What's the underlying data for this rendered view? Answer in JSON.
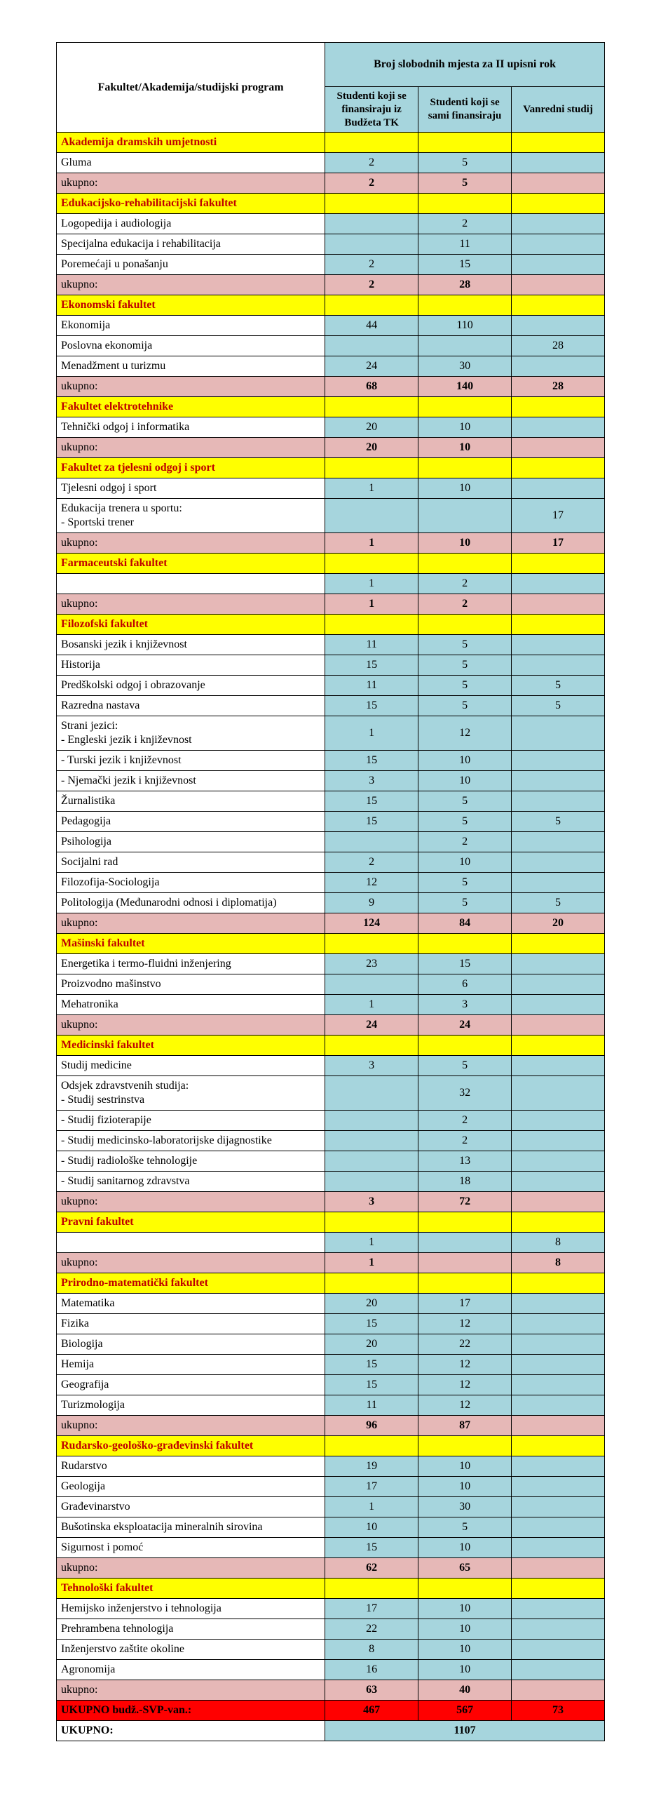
{
  "header": {
    "left": "Fakultet/Akademija/studijski program",
    "top": "Broj slobodnih mjesta za II upisni rok",
    "sub1": "Studenti koji se finansiraju iz Budžeta TK",
    "sub2": "Studenti koji se sami finansiraju",
    "sub3": "Vanredni studij"
  },
  "rows": [
    {
      "type": "faculty",
      "label": "Akademija dramskih umjetnosti"
    },
    {
      "type": "program",
      "label": "Gluma",
      "v": [
        "2",
        "5",
        ""
      ]
    },
    {
      "type": "subtotal",
      "label": "ukupno:",
      "v": [
        "2",
        "5",
        ""
      ]
    },
    {
      "type": "faculty",
      "label": "Edukacijsko-rehabilitacijski fakultet"
    },
    {
      "type": "program",
      "label": "Logopedija i audiologija",
      "v": [
        "",
        "2",
        ""
      ]
    },
    {
      "type": "program",
      "label": "Specijalna edukacija i rehabilitacija",
      "v": [
        "",
        "11",
        ""
      ]
    },
    {
      "type": "program",
      "label": "Poremećaji u ponašanju",
      "v": [
        "2",
        "15",
        ""
      ]
    },
    {
      "type": "subtotal",
      "label": "ukupno:",
      "v": [
        "2",
        "28",
        ""
      ]
    },
    {
      "type": "faculty",
      "label": "Ekonomski fakultet"
    },
    {
      "type": "program",
      "label": "Ekonomija",
      "v": [
        "44",
        "110",
        ""
      ]
    },
    {
      "type": "program",
      "label": "Poslovna ekonomija",
      "v": [
        "",
        "",
        "28"
      ]
    },
    {
      "type": "program",
      "label": "Menadžment u turizmu",
      "v": [
        "24",
        "30",
        ""
      ]
    },
    {
      "type": "subtotal",
      "label": "ukupno:",
      "v": [
        "68",
        "140",
        "28"
      ]
    },
    {
      "type": "faculty",
      "label": "Fakultet  elektrotehnike"
    },
    {
      "type": "program",
      "label": "Tehnički odgoj i informatika",
      "v": [
        "20",
        "10",
        ""
      ]
    },
    {
      "type": "subtotal",
      "label": "ukupno:",
      "v": [
        "20",
        "10",
        ""
      ]
    },
    {
      "type": "faculty",
      "label": "Fakultet  za tjelesni odgoj i sport"
    },
    {
      "type": "program",
      "label": "Tjelesni odgoj i sport",
      "v": [
        "1",
        "10",
        ""
      ]
    },
    {
      "type": "program",
      "label": "Edukacija trenera u sportu:\n - Sportski trener",
      "v": [
        "",
        "",
        "17"
      ]
    },
    {
      "type": "subtotal",
      "label": "ukupno:",
      "v": [
        "1",
        "10",
        "17"
      ]
    },
    {
      "type": "faculty",
      "label": "Farmaceutski fakultet"
    },
    {
      "type": "program",
      "label": "",
      "v": [
        "1",
        "2",
        ""
      ]
    },
    {
      "type": "subtotal",
      "label": "ukupno:",
      "v": [
        "1",
        "2",
        ""
      ]
    },
    {
      "type": "faculty",
      "label": "Filozofski fakultet"
    },
    {
      "type": "program",
      "label": "Bosanski jezik i književnost",
      "v": [
        "11",
        "5",
        ""
      ]
    },
    {
      "type": "program",
      "label": "Historija",
      "v": [
        "15",
        "5",
        ""
      ]
    },
    {
      "type": "program",
      "label": "Predškolski odgoj i obrazovanje",
      "v": [
        "11",
        "5",
        "5"
      ]
    },
    {
      "type": "program",
      "label": "Razredna nastava",
      "v": [
        "15",
        "5",
        "5"
      ]
    },
    {
      "type": "program",
      "label": "Strani jezici:\n - Engleski jezik i književnost",
      "v": [
        "1",
        "12",
        ""
      ]
    },
    {
      "type": "program",
      "label": " - Turski jezik i književnost",
      "v": [
        "15",
        "10",
        ""
      ]
    },
    {
      "type": "program",
      "label": " - Njemački jezik i književnost",
      "v": [
        "3",
        "10",
        ""
      ]
    },
    {
      "type": "program",
      "label": "Žurnalistika",
      "v": [
        "15",
        "5",
        ""
      ]
    },
    {
      "type": "program",
      "label": "Pedagogija",
      "v": [
        "15",
        "5",
        "5"
      ]
    },
    {
      "type": "program",
      "label": "Psihologija",
      "v": [
        "",
        "2",
        ""
      ]
    },
    {
      "type": "program",
      "label": "Socijalni rad",
      "v": [
        "2",
        "10",
        ""
      ]
    },
    {
      "type": "program",
      "label": "Filozofija-Sociologija",
      "v": [
        "12",
        "5",
        ""
      ]
    },
    {
      "type": "program",
      "label": "Politologija (Međunarodni odnosi i diplomatija)",
      "v": [
        "9",
        "5",
        "5"
      ]
    },
    {
      "type": "subtotal",
      "label": "ukupno:",
      "v": [
        "124",
        "84",
        "20"
      ]
    },
    {
      "type": "faculty",
      "label": "Mašinski fakultet"
    },
    {
      "type": "program",
      "label": "Energetika i termo-fluidni inženjering",
      "v": [
        "23",
        "15",
        ""
      ]
    },
    {
      "type": "program",
      "label": "Proizvodno mašinstvo",
      "v": [
        "",
        "6",
        ""
      ]
    },
    {
      "type": "program",
      "label": "Mehatronika",
      "v": [
        "1",
        "3",
        ""
      ]
    },
    {
      "type": "subtotal",
      "label": "ukupno:",
      "v": [
        "24",
        "24",
        ""
      ]
    },
    {
      "type": "faculty",
      "label": "Medicinski fakultet"
    },
    {
      "type": "program",
      "label": "Studij medicine",
      "v": [
        "3",
        "5",
        ""
      ]
    },
    {
      "type": "program",
      "label": "Odsjek zdravstvenih studija:\n - Studij sestrinstva",
      "v": [
        "",
        "32",
        ""
      ]
    },
    {
      "type": "program",
      "label": " - Studij fizioterapije",
      "v": [
        "",
        "2",
        ""
      ]
    },
    {
      "type": "program",
      "label": " - Studij medicinsko-laboratorijske dijagnostike",
      "v": [
        "",
        "2",
        ""
      ]
    },
    {
      "type": "program",
      "label": " - Studij radiološke tehnologije",
      "v": [
        "",
        "13",
        ""
      ]
    },
    {
      "type": "program",
      "label": " - Studij sanitarnog zdravstva",
      "v": [
        "",
        "18",
        ""
      ]
    },
    {
      "type": "subtotal",
      "label": "ukupno:",
      "v": [
        "3",
        "72",
        ""
      ]
    },
    {
      "type": "faculty",
      "label": "Pravni fakultet"
    },
    {
      "type": "program",
      "label": "",
      "v": [
        "1",
        "",
        "8"
      ]
    },
    {
      "type": "subtotal",
      "label": "ukupno:",
      "v": [
        "1",
        "",
        "8"
      ]
    },
    {
      "type": "faculty",
      "label": "Prirodno-matematički fakultet"
    },
    {
      "type": "program",
      "label": "Matematika",
      "v": [
        "20",
        "17",
        ""
      ]
    },
    {
      "type": "program",
      "label": "Fizika",
      "v": [
        "15",
        "12",
        ""
      ]
    },
    {
      "type": "program",
      "label": "Biologija",
      "v": [
        "20",
        "22",
        ""
      ]
    },
    {
      "type": "program",
      "label": "Hemija",
      "v": [
        "15",
        "12",
        ""
      ]
    },
    {
      "type": "program",
      "label": "Geografija",
      "v": [
        "15",
        "12",
        ""
      ]
    },
    {
      "type": "program",
      "label": "Turizmologija",
      "v": [
        "11",
        "12",
        ""
      ]
    },
    {
      "type": "subtotal",
      "label": "ukupno:",
      "v": [
        "96",
        "87",
        ""
      ]
    },
    {
      "type": "faculty",
      "label": "Rudarsko-geološko-građevinski fakultet"
    },
    {
      "type": "program",
      "label": "Rudarstvo",
      "v": [
        "19",
        "10",
        ""
      ]
    },
    {
      "type": "program",
      "label": "Geologija",
      "v": [
        "17",
        "10",
        ""
      ]
    },
    {
      "type": "program",
      "label": "Građevinarstvo",
      "v": [
        "1",
        "30",
        ""
      ]
    },
    {
      "type": "program",
      "label": "Bušotinska eksploatacija mineralnih sirovina",
      "v": [
        "10",
        "5",
        ""
      ]
    },
    {
      "type": "program",
      "label": "Sigurnost i pomoć",
      "v": [
        "15",
        "10",
        ""
      ]
    },
    {
      "type": "subtotal",
      "label": "ukupno:",
      "v": [
        "62",
        "65",
        ""
      ]
    },
    {
      "type": "faculty",
      "label": "Tehnološki fakultet"
    },
    {
      "type": "program",
      "label": "Hemijsko inženjerstvo i tehnologija",
      "v": [
        "17",
        "10",
        ""
      ]
    },
    {
      "type": "program",
      "label": "Prehrambena tehnologija",
      "v": [
        "22",
        "10",
        ""
      ]
    },
    {
      "type": "program",
      "label": "Inženjerstvo zaštite okoline",
      "v": [
        "8",
        "10",
        ""
      ]
    },
    {
      "type": "program",
      "label": "Agronomija",
      "v": [
        "16",
        "10",
        ""
      ]
    },
    {
      "type": "subtotal",
      "label": "ukupno:",
      "v": [
        "63",
        "40",
        ""
      ]
    },
    {
      "type": "grandred",
      "label": "UKUPNO budž.-SVP-van.:",
      "v": [
        "467",
        "567",
        "73"
      ]
    },
    {
      "type": "grandfinal",
      "label": "UKUPNO:",
      "vmerged": "1107"
    }
  ]
}
